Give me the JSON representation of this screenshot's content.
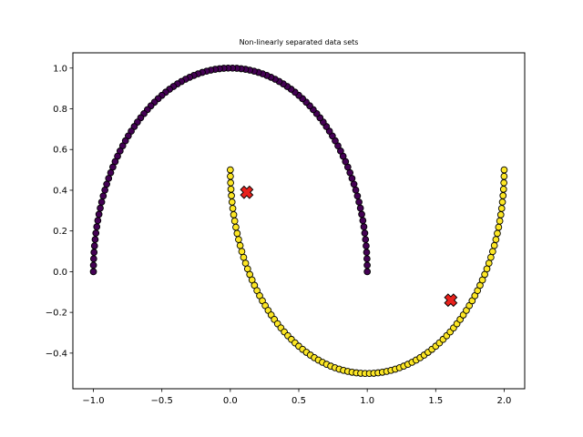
{
  "chart_data": {
    "type": "scatter",
    "title": "Non-linearly separated data sets",
    "xlabel": "",
    "ylabel": "",
    "xlim": [
      -1.15,
      2.15
    ],
    "ylim": [
      -0.575,
      1.075
    ],
    "x_ticks": [
      -1.0,
      -0.5,
      0.0,
      0.5,
      1.0,
      1.5,
      2.0
    ],
    "x_tick_labels": [
      "−1.0",
      "−0.5",
      "0.0",
      "0.5",
      "1.0",
      "1.5",
      "2.0"
    ],
    "y_ticks": [
      -0.4,
      -0.2,
      0.0,
      0.2,
      0.4,
      0.6,
      0.8,
      1.0
    ],
    "y_tick_labels": [
      "−0.4",
      "−0.2",
      "0.0",
      "0.2",
      "0.4",
      "0.6",
      "0.8",
      "1.0"
    ],
    "grid": false,
    "series": [
      {
        "shape": "upper-moon",
        "n_points": 100,
        "marker": "circle",
        "color": "#440154",
        "edge_color": "#000000",
        "x_min": -1.0,
        "x_max": 1.0,
        "y_min": 0.0,
        "y_max": 1.0
      },
      {
        "shape": "lower-moon",
        "n_points": 100,
        "marker": "circle",
        "color": "#fde725",
        "edge_color": "#000000",
        "x_min": 0.0,
        "x_max": 2.0,
        "y_min": -0.5,
        "y_max": 0.5
      },
      {
        "shape": "markers",
        "marker": "x",
        "color": "#e8211c",
        "edge_color": "#000000",
        "points": [
          {
            "x": 0.12,
            "y": 0.39
          },
          {
            "x": 1.61,
            "y": -0.14
          }
        ]
      }
    ]
  }
}
